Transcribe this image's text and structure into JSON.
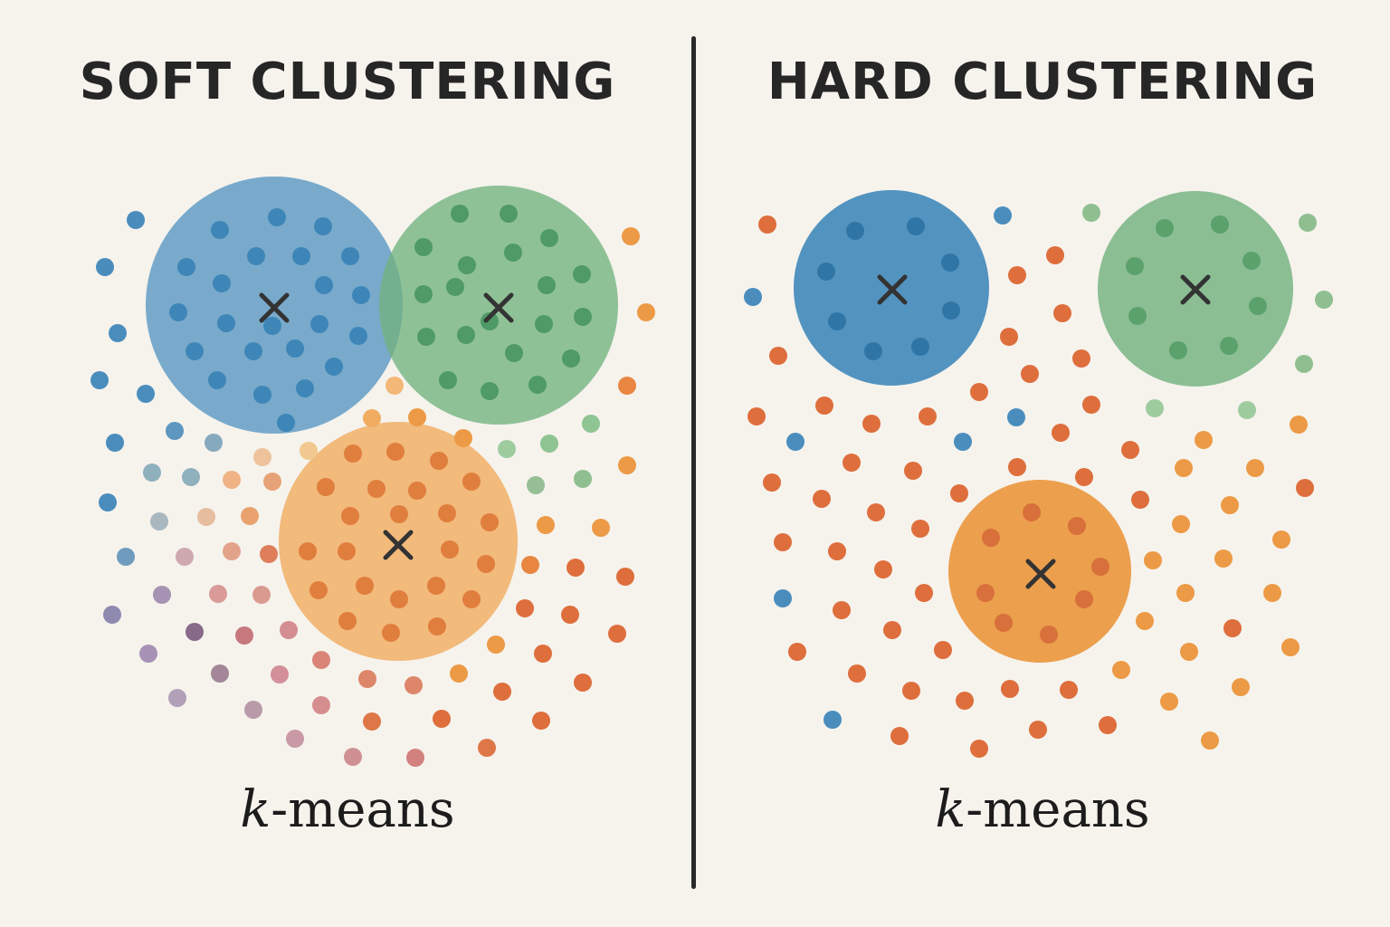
{
  "left_panel": {
    "title": "SOFT CLUSTERING",
    "subtitle_k": "k",
    "subtitle_rest": "-means"
  },
  "right_panel": {
    "title": "HARD CLUSTERING",
    "subtitle_k": "k",
    "subtitle_rest": "-means"
  },
  "colors": {
    "background": "#f6f3ed",
    "blue": "#4a8dbd",
    "green": "#6fb07c",
    "orange": "#ec9a45",
    "red_orange": "#de6e3c",
    "centroid_mark": "#333333"
  },
  "icons": [
    "centroid-x-icon"
  ]
}
